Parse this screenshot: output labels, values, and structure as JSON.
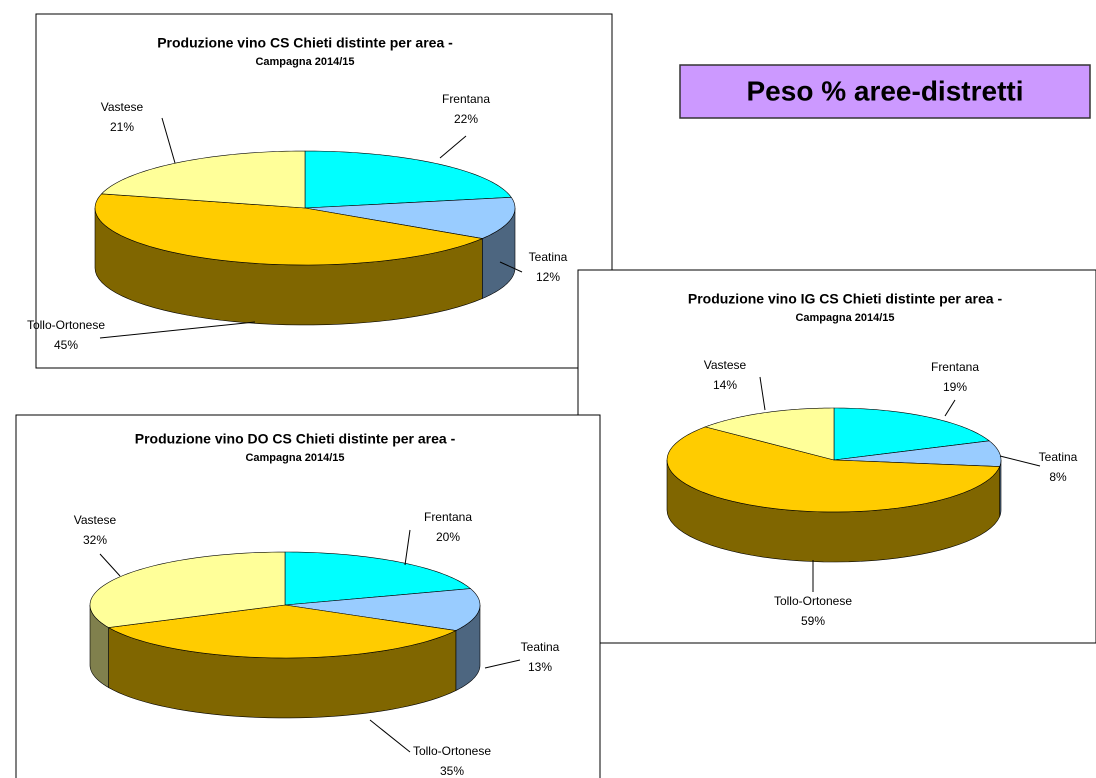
{
  "heading": "Peso % aree-distretti",
  "chart_data": [
    {
      "type": "pie",
      "title": "Produzione vino CS Chieti distinte per area -",
      "subtitle": "Campagna 2014/15",
      "categories": [
        "Frentana",
        "Teatina",
        "Tollo-Ortonese",
        "Vastese"
      ],
      "values": [
        22,
        12,
        45,
        21
      ],
      "value_labels": [
        "22%",
        "12%",
        "45%",
        "21%"
      ],
      "colors": [
        "#00ffff",
        "#99ccff",
        "#ffcc00",
        "#ffff99"
      ]
    },
    {
      "type": "pie",
      "title": "Produzione vino IG CS Chieti distinte per area -",
      "subtitle": "Campagna 2014/15",
      "categories": [
        "Frentana",
        "Teatina",
        "Tollo-Ortonese",
        "Vastese"
      ],
      "values": [
        19,
        8,
        59,
        14
      ],
      "value_labels": [
        "19%",
        "8%",
        "59%",
        "14%"
      ],
      "colors": [
        "#00ffff",
        "#99ccff",
        "#ffcc00",
        "#ffff99"
      ]
    },
    {
      "type": "pie",
      "title": "Produzione vino DO CS Chieti distinte per area -",
      "subtitle": "Campagna 2014/15",
      "categories": [
        "Frentana",
        "Teatina",
        "Tollo-Ortonese",
        "Vastese"
      ],
      "values": [
        20,
        13,
        35,
        32
      ],
      "value_labels": [
        "20%",
        "13%",
        "35%",
        "32%"
      ],
      "colors": [
        "#00ffff",
        "#99ccff",
        "#ffcc00",
        "#ffff99"
      ]
    }
  ]
}
